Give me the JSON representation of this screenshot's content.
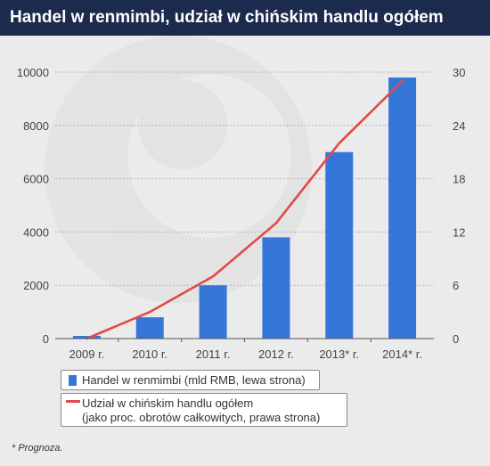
{
  "header": {
    "title": "Handel w renmimbi, udział w chińskim handlu ogółem"
  },
  "colors": {
    "header_bg": "#1c2a4d",
    "bar": "#3577d9",
    "line": "#e04a4a",
    "background": "#ebebeb"
  },
  "chart_data": {
    "type": "bar",
    "title": "Handel w renmimbi, udział w chińskim handlu ogółem",
    "categories": [
      "2009 r.",
      "2010 r.",
      "2011 r.",
      "2012 r.",
      "2013* r.",
      "2014* r."
    ],
    "y_left": {
      "ylim": [
        0,
        10000
      ],
      "ticks": [
        "0",
        "2000",
        "4000",
        "6000",
        "8000",
        "10000"
      ]
    },
    "y_right": {
      "ylim": [
        0,
        30
      ],
      "ticks": [
        "0",
        "6",
        "12",
        "18",
        "24",
        "30"
      ]
    },
    "grid": true,
    "legend_position": "bottom-left",
    "series": [
      {
        "name": "Handel w renmimbi (mld RMB, lewa strona)",
        "type": "bar",
        "axis": "left",
        "values": [
          100,
          800,
          2000,
          3800,
          7000,
          9800
        ]
      },
      {
        "name": "Udział w chińskim handlu ogółem",
        "name_line2": "(jako proc. obrotów całkowitych, prawa strona)",
        "type": "line",
        "axis": "right",
        "values": [
          0,
          3,
          7,
          13,
          22,
          29
        ]
      }
    ]
  },
  "footnote": "* Prognoza."
}
